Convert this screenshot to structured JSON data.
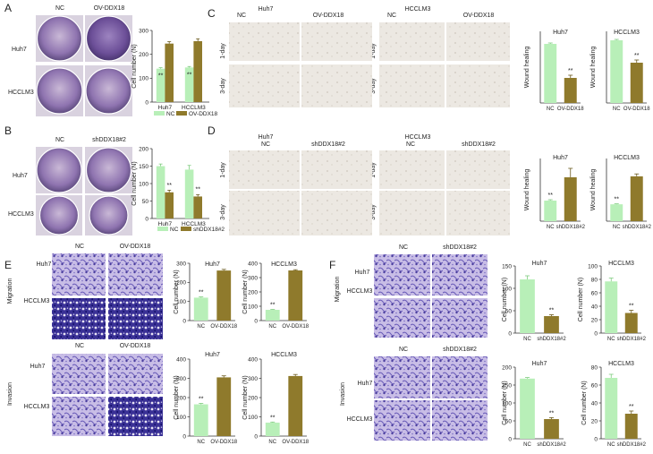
{
  "colors": {
    "light": "#b8efb8",
    "dark": "#8f7a2c",
    "wound": "#ece8e2",
    "cellsLight": "#c2b6e4",
    "cellsDark": "#2a2380",
    "dish": "#8a6fae"
  },
  "panel_letters": [
    "A",
    "B",
    "C",
    "D",
    "E",
    "F"
  ],
  "text": {
    "nc": "NC",
    "ov": "OV-DDX18",
    "sh": "shDDX18#2",
    "huh7": "Huh7",
    "hcclm3": "HCCLM3",
    "day1": "1-day",
    "day3": "3-day",
    "migration": "Migration",
    "invasion": "Invasion",
    "cell_number": "Cell number (N)",
    "wound_healing": "Wound healing",
    "sig": "**"
  },
  "chart_data": [
    {
      "id": "A",
      "type": "bar",
      "categories": [
        "Huh7",
        "HCCLM3"
      ],
      "series": [
        {
          "name": "NC",
          "values": [
            140,
            145
          ]
        },
        {
          "name": "OV-DDX18",
          "values": [
            245,
            255
          ]
        }
      ],
      "errors": [
        [
          4,
          4
        ],
        [
          8,
          10
        ]
      ],
      "ylabel": "Cell number (N)",
      "ylim": [
        0,
        300
      ],
      "yticks": [
        0,
        100,
        200,
        300
      ],
      "sig": [
        "**",
        "**"
      ],
      "legend": "bottom"
    },
    {
      "id": "B",
      "type": "bar",
      "categories": [
        "Huh7",
        "HCCLM3"
      ],
      "series": [
        {
          "name": "NC",
          "values": [
            150,
            140
          ]
        },
        {
          "name": "shDDX18#2",
          "values": [
            75,
            63
          ]
        }
      ],
      "errors": [
        [
          6,
          12
        ],
        [
          6,
          5
        ]
      ],
      "ylabel": "Cell number (N)",
      "ylim": [
        0,
        200
      ],
      "yticks": [
        0,
        50,
        100,
        150,
        200
      ],
      "sig": [
        "**",
        "**"
      ],
      "legend": "bottom"
    },
    {
      "id": "C1",
      "type": "bar",
      "title": "Huh7",
      "categories": [
        "NC",
        "OV-DDX18"
      ],
      "values": [
        0.33,
        0.14
      ],
      "errors": [
        0.005,
        0.015
      ],
      "ylabel": "Wound healing",
      "ylim": [
        0,
        0.4
      ],
      "yticks": [],
      "sig": [
        "",
        "**"
      ]
    },
    {
      "id": "C2",
      "type": "bar",
      "title": "HCCLM3",
      "categories": [
        "NC",
        "OV-DDX18"
      ],
      "values": [
        0.7,
        0.45
      ],
      "errors": [
        0.01,
        0.03
      ],
      "ylabel": "Wound healing",
      "ylim": [
        0,
        0.8
      ],
      "yticks": [],
      "sig": [
        "",
        "**"
      ]
    },
    {
      "id": "D1",
      "type": "bar",
      "title": "Huh7",
      "categories": [
        "NC",
        "shDDX18#2"
      ],
      "values": [
        0.23,
        0.49
      ],
      "errors": [
        0.01,
        0.1
      ],
      "ylabel": "Wound healing",
      "ylim": [
        0,
        0.7
      ],
      "yticks": [],
      "sig": [
        "**",
        ""
      ]
    },
    {
      "id": "D2",
      "type": "bar",
      "title": "HCCLM3",
      "categories": [
        "NC",
        "shDDX18#2"
      ],
      "values": [
        0.35,
        0.93
      ],
      "errors": [
        0.01,
        0.05
      ],
      "ylabel": "Wound healing",
      "ylim": [
        0,
        1.3
      ],
      "yticks": [],
      "sig": [
        "**",
        ""
      ]
    },
    {
      "id": "E1",
      "type": "bar",
      "title": "Huh7",
      "categories": [
        "NC",
        "OV-DDX18"
      ],
      "values": [
        120,
        262
      ],
      "errors": [
        4,
        6
      ],
      "ylabel": "Cell number (N)",
      "ylim": [
        0,
        300
      ],
      "yticks": [
        0,
        100,
        200,
        300
      ],
      "sig": [
        "**",
        ""
      ]
    },
    {
      "id": "E2",
      "type": "bar",
      "title": "HCCLM3",
      "categories": [
        "NC",
        "OV-DDX18"
      ],
      "values": [
        75,
        350
      ],
      "errors": [
        3,
        5
      ],
      "ylabel": "Cell number (N)",
      "ylim": [
        0,
        400
      ],
      "yticks": [
        0,
        100,
        200,
        300,
        400
      ],
      "sig": [
        "**",
        ""
      ]
    },
    {
      "id": "E3",
      "type": "bar",
      "title": "Huh7",
      "categories": [
        "NC",
        "OV-DDX18"
      ],
      "values": [
        165,
        305
      ],
      "errors": [
        5,
        8
      ],
      "ylabel": "Cell number (N)",
      "ylim": [
        0,
        400
      ],
      "yticks": [
        0,
        100,
        200,
        300,
        400
      ],
      "sig": [
        "**",
        ""
      ]
    },
    {
      "id": "E4",
      "type": "bar",
      "title": "HCCLM3",
      "categories": [
        "NC",
        "OV-DDX18"
      ],
      "values": [
        70,
        312
      ],
      "errors": [
        3,
        8
      ],
      "ylabel": "Cell number (N)",
      "ylim": [
        0,
        400
      ],
      "yticks": [
        0,
        100,
        200,
        300,
        400
      ],
      "sig": [
        "**",
        ""
      ]
    },
    {
      "id": "F1",
      "type": "bar",
      "title": "Huh7",
      "categories": [
        "NC",
        "shDDX18#2"
      ],
      "values": [
        120,
        38
      ],
      "errors": [
        8,
        3
      ],
      "ylabel": "Cell number (N)",
      "ylim": [
        0,
        150
      ],
      "yticks": [
        0,
        50,
        100,
        150
      ],
      "sig": [
        "",
        "**"
      ]
    },
    {
      "id": "F2",
      "type": "bar",
      "title": "HCCLM3",
      "categories": [
        "NC",
        "shDDX18#2"
      ],
      "values": [
        77,
        30
      ],
      "errors": [
        5,
        4
      ],
      "ylabel": "Cell number (N)",
      "ylim": [
        0,
        100
      ],
      "yticks": [
        0,
        20,
        40,
        60,
        80,
        100
      ],
      "sig": [
        "",
        "**"
      ]
    },
    {
      "id": "F3",
      "type": "bar",
      "title": "Huh7",
      "categories": [
        "NC",
        "shDDX18#2"
      ],
      "values": [
        168,
        55
      ],
      "errors": [
        3,
        4
      ],
      "ylabel": "Cell number (N)",
      "ylim": [
        0,
        200
      ],
      "yticks": [
        0,
        50,
        100,
        150,
        200
      ],
      "sig": [
        "",
        "**"
      ]
    },
    {
      "id": "F4",
      "type": "bar",
      "title": "HCCLM3",
      "categories": [
        "NC",
        "shDDX18#2"
      ],
      "values": [
        68,
        28
      ],
      "errors": [
        4,
        3
      ],
      "ylabel": "Cell number (N)",
      "ylim": [
        0,
        80
      ],
      "yticks": [
        0,
        20,
        40,
        60,
        80
      ],
      "sig": [
        "",
        "**"
      ]
    }
  ]
}
